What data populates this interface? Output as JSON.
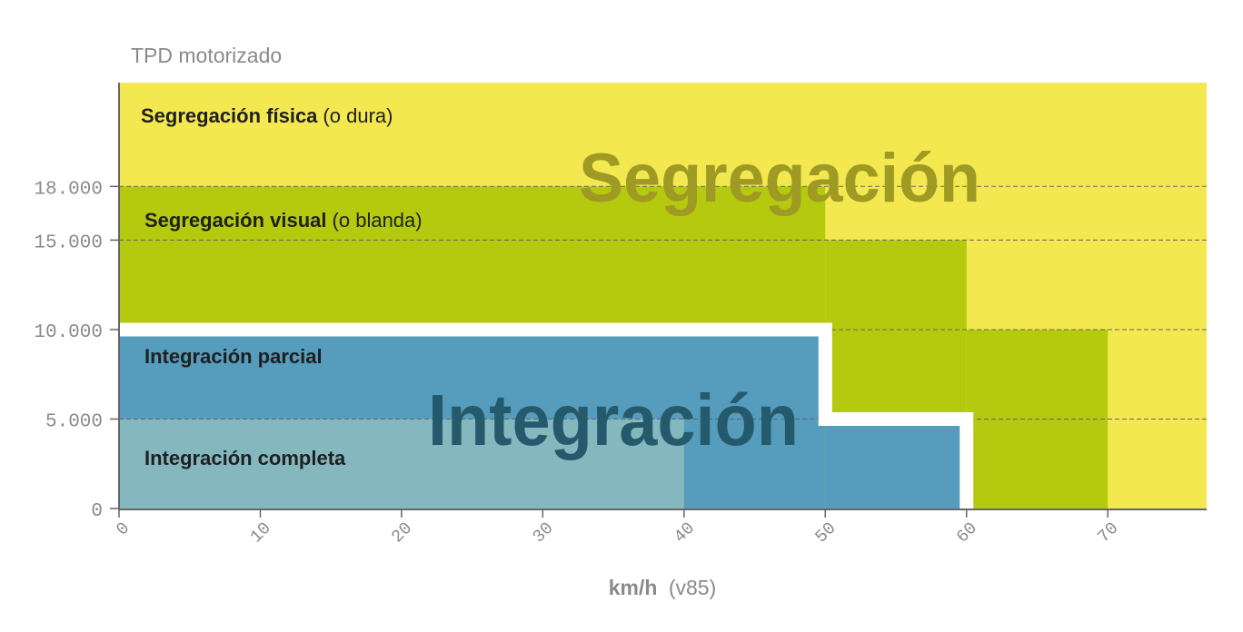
{
  "chart_data": {
    "type": "area",
    "ylabel": "TPD motorizado",
    "xlabel": "km/h",
    "xlabel_suffix": "(v85)",
    "xlim": [
      0,
      77
    ],
    "ylim": [
      0,
      23800
    ],
    "x_ticks": [
      {
        "value": 0,
        "label": "0"
      },
      {
        "value": 10,
        "label": "10"
      },
      {
        "value": 20,
        "label": "20"
      },
      {
        "value": 30,
        "label": "30"
      },
      {
        "value": 40,
        "label": "40"
      },
      {
        "value": 50,
        "label": "50"
      },
      {
        "value": 60,
        "label": "60"
      },
      {
        "value": 70,
        "label": "70"
      }
    ],
    "y_ticks": [
      {
        "value": 0,
        "label": "0"
      },
      {
        "value": 5000,
        "label": "5.000"
      },
      {
        "value": 10000,
        "label": "10.000"
      },
      {
        "value": 15000,
        "label": "15.000"
      },
      {
        "value": 18000,
        "label": "18.000"
      }
    ],
    "grid_lines_at": [
      5000,
      10000,
      15000,
      18000
    ],
    "zones": [
      {
        "name": "Segregación física",
        "qualifier": "(o dura)",
        "color": "#f3e84f",
        "region": {
          "x": [
            0,
            77
          ],
          "y": [
            0,
            23800
          ]
        }
      },
      {
        "name": "Segregación visual",
        "qualifier": "(o blanda)",
        "color": "#b5ca0e",
        "steps": [
          {
            "x_max": 50,
            "y_max": 18000
          },
          {
            "x_max": 60,
            "y_max": 15000
          },
          {
            "x_max": 70,
            "y_max": 10000
          }
        ]
      },
      {
        "name": "Integración parcial",
        "qualifier": "",
        "color": "#559cbd",
        "steps": [
          {
            "x_max": 50,
            "y_max": 10000
          },
          {
            "x_max": 60,
            "y_max": 5000
          }
        ]
      },
      {
        "name": "Integración completa",
        "qualifier": "",
        "color": "#85b8be",
        "steps": [
          {
            "x_max": 40,
            "y_max": 5000
          }
        ]
      }
    ],
    "overlay_labels": [
      {
        "text": "Segregación",
        "color": "#9e9a24"
      },
      {
        "text": "Integración",
        "color": "#245a6b"
      }
    ],
    "divider_color": "#ffffff",
    "axis_color": "#666666",
    "grid_color": "#666666"
  }
}
